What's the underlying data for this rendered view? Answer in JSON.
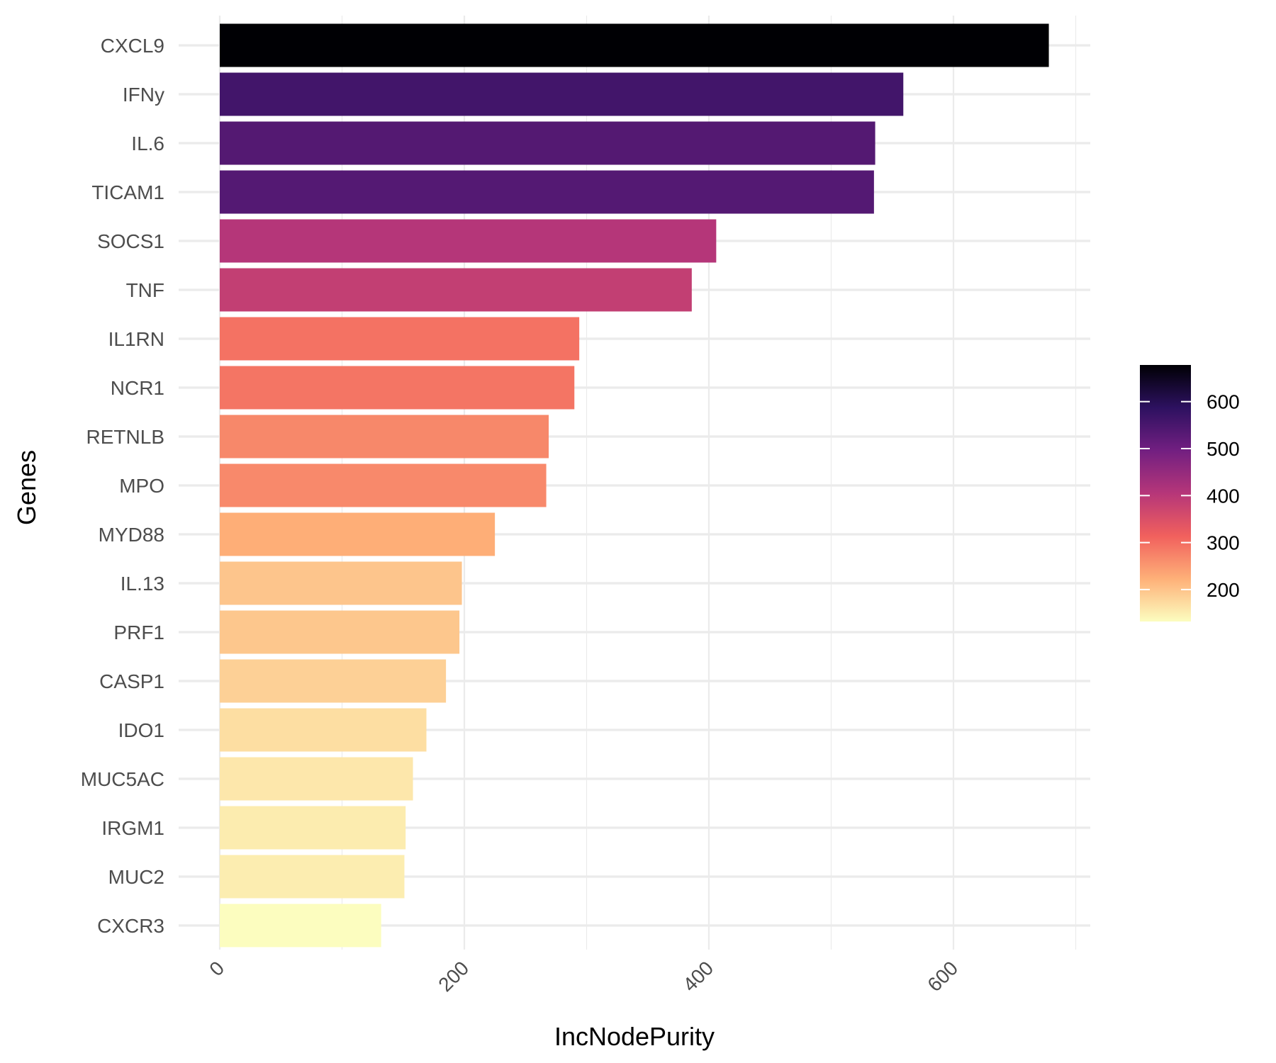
{
  "chart_data": {
    "type": "bar",
    "orientation": "horizontal",
    "xlabel": "IncNodePurity",
    "ylabel": "Genes",
    "xlim": [
      0,
      700
    ],
    "xticks": [
      0,
      200,
      400,
      600
    ],
    "categories": [
      "CXCL9",
      "IFNy",
      "IL.6",
      "TICAM1",
      "SOCS1",
      "TNF",
      "IL1RN",
      "NCR1",
      "RETNLB",
      "MPO",
      "MYD88",
      "IL.13",
      "PRF1",
      "CASP1",
      "IDO1",
      "MUC5AC",
      "IRGM1",
      "MUC2",
      "CXCR3"
    ],
    "values": [
      678,
      559,
      536,
      535,
      406,
      386,
      294,
      290,
      269,
      267,
      225,
      198,
      196,
      185,
      169,
      158,
      152,
      151,
      132
    ],
    "grid": true,
    "colorbar": {
      "range": [
        132,
        678
      ],
      "ticks": [
        200,
        300,
        400,
        500,
        600
      ],
      "scale": "magma-reversed",
      "stops": [
        "#fcfdbf",
        "#feb078",
        "#f1605d",
        "#b63679",
        "#721f81",
        "#2d1160",
        "#000004"
      ],
      "position": "right"
    }
  }
}
